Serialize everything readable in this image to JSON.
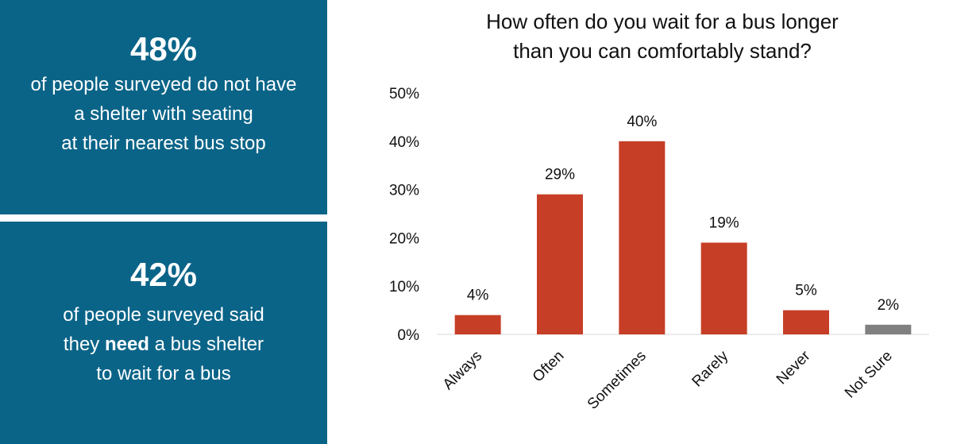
{
  "stats": [
    {
      "value": "48%",
      "lines": [
        {
          "text": "of people surveyed do not have"
        },
        {
          "text": "a shelter with seating"
        },
        {
          "text": "at their nearest bus stop"
        }
      ]
    },
    {
      "value": "42%",
      "lines": [
        {
          "text": "of people surveyed said"
        },
        {
          "pre": "they ",
          "bold": "need",
          "post": " a bus shelter"
        },
        {
          "text": "to wait for a bus"
        }
      ]
    }
  ],
  "colors": {
    "panel": "#0a6488",
    "bar": "#c63e26",
    "bar_not_sure": "#808080"
  },
  "chart_data": {
    "type": "bar",
    "title": "How often do you wait for a bus longer than you can comfortably stand?",
    "title_lines": [
      "How often do you wait for a bus longer",
      "than you can comfortably stand?"
    ],
    "categories": [
      "Always",
      "Often",
      "Sometimes",
      "Rarely",
      "Never",
      "Not Sure"
    ],
    "values": [
      4,
      29,
      40,
      19,
      5,
      2
    ],
    "value_labels": [
      "4%",
      "29%",
      "40%",
      "19%",
      "5%",
      "2%"
    ],
    "bar_colors": [
      "#c63e26",
      "#c63e26",
      "#c63e26",
      "#c63e26",
      "#c63e26",
      "#808080"
    ],
    "ylim": [
      0,
      50
    ],
    "y_ticks": [
      0,
      10,
      20,
      30,
      40,
      50
    ],
    "y_tick_labels": [
      "0%",
      "10%",
      "20%",
      "30%",
      "40%",
      "50%"
    ],
    "xlabel": "",
    "ylabel": "",
    "grid": false,
    "legend": "none"
  }
}
